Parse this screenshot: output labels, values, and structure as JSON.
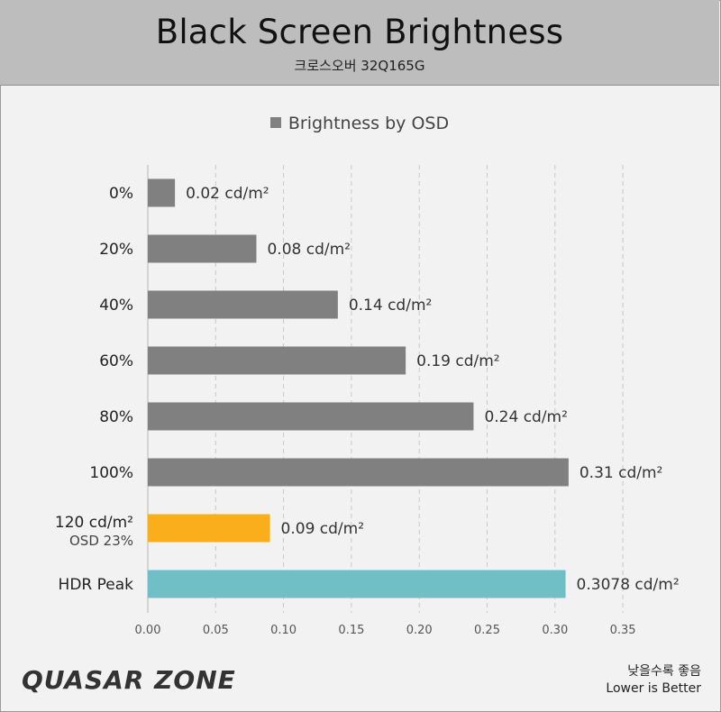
{
  "header": {
    "title": "Black Screen Brightness",
    "subtitle": "크로스오버 32Q165G"
  },
  "footer": {
    "logo": "QUASAR ZONE",
    "note_ko": "낮을수록 좋음",
    "note_en": "Lower is Better"
  },
  "chart_data": {
    "type": "bar",
    "orientation": "horizontal",
    "title": "Black Screen Brightness",
    "subtitle": "크로스오버 32Q165G",
    "legend": [
      "Brightness by OSD"
    ],
    "legend_position": "top",
    "categories": [
      {
        "label": "0%",
        "sublabel": ""
      },
      {
        "label": "20%",
        "sublabel": ""
      },
      {
        "label": "40%",
        "sublabel": ""
      },
      {
        "label": "60%",
        "sublabel": ""
      },
      {
        "label": "80%",
        "sublabel": ""
      },
      {
        "label": "100%",
        "sublabel": ""
      },
      {
        "label": "120 cd/m²",
        "sublabel": "OSD 23%"
      },
      {
        "label": "HDR Peak",
        "sublabel": ""
      }
    ],
    "values": [
      0.02,
      0.08,
      0.14,
      0.19,
      0.24,
      0.31,
      0.09,
      0.3078
    ],
    "value_labels": [
      "0.02 cd/m²",
      "0.08 cd/m²",
      "0.14 cd/m²",
      "0.19 cd/m²",
      "0.24 cd/m²",
      "0.31 cd/m²",
      "0.09 cd/m²",
      "0.3078 cd/m²"
    ],
    "bar_colors": [
      "#808080",
      "#808080",
      "#808080",
      "#808080",
      "#808080",
      "#808080",
      "#fbae1c",
      "#70bfc7"
    ],
    "x_ticks": [
      "0.00",
      "0.05",
      "0.10",
      "0.15",
      "0.20",
      "0.25",
      "0.30",
      "0.35"
    ],
    "xlim": [
      0,
      0.35
    ],
    "grid": "vertical dashed"
  }
}
